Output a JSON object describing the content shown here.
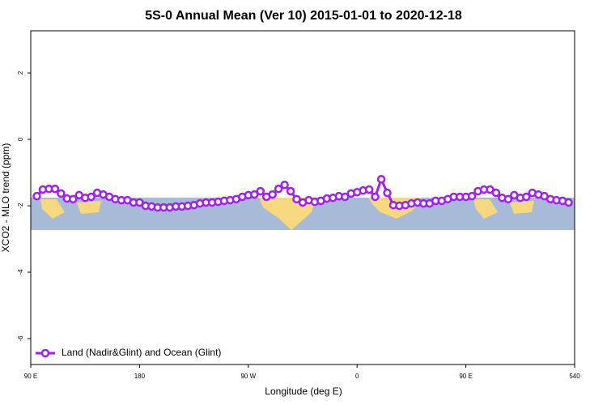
{
  "chart_data": {
    "type": "line",
    "title": "5S-0 Annual Mean (Ver 10)   2015-01-01 to 2020-12-18",
    "x_label": "Longitude (deg E)",
    "y_label": "XCO2 - MLO trend (ppm)",
    "x": [
      95,
      100,
      105,
      110,
      115,
      120,
      125,
      130,
      135,
      140,
      145,
      150,
      155,
      160,
      165,
      170,
      175,
      180,
      185,
      190,
      195,
      200,
      205,
      210,
      215,
      220,
      225,
      230,
      235,
      240,
      245,
      250,
      255,
      260,
      265,
      270,
      275,
      280,
      285,
      290,
      295,
      300,
      305,
      310,
      315,
      320,
      325,
      330,
      335,
      340,
      345,
      350,
      355,
      360,
      365,
      370,
      375,
      380,
      385,
      390,
      395,
      400,
      405,
      410,
      415,
      420,
      425,
      430,
      435,
      440,
      445,
      450,
      455,
      460,
      465,
      470,
      475,
      480,
      485,
      490,
      495,
      500,
      505,
      510,
      515,
      520,
      525,
      530,
      535
    ],
    "series": [
      {
        "name": "Land (Nadir&Glint) and Ocean (Glint)",
        "color": "#a020f0",
        "values": [
          -1.71,
          -1.51,
          -1.49,
          -1.49,
          -1.63,
          -1.78,
          -1.8,
          -1.68,
          -1.76,
          -1.73,
          -1.61,
          -1.66,
          -1.73,
          -1.8,
          -1.83,
          -1.83,
          -1.9,
          -1.9,
          -2.0,
          -2.02,
          -2.05,
          -2.05,
          -2.05,
          -2.02,
          -2.02,
          -2.0,
          -1.98,
          -1.93,
          -1.9,
          -1.9,
          -1.88,
          -1.85,
          -1.83,
          -1.8,
          -1.73,
          -1.68,
          -1.66,
          -1.56,
          -1.73,
          -1.66,
          -1.49,
          -1.37,
          -1.56,
          -1.8,
          -1.9,
          -1.83,
          -1.88,
          -1.85,
          -1.78,
          -1.76,
          -1.71,
          -1.73,
          -1.63,
          -1.59,
          -1.54,
          -1.51,
          -1.73,
          -1.2,
          -1.61,
          -1.98,
          -2.0,
          -1.98,
          -1.93,
          -1.9,
          -1.93,
          -1.93,
          -1.85,
          -1.85,
          -1.8,
          -1.73,
          -1.73,
          -1.73,
          -1.71,
          -1.56,
          -1.51,
          -1.51,
          -1.61,
          -1.76,
          -1.8,
          -1.68,
          -1.76,
          -1.73,
          -1.61,
          -1.66,
          -1.71,
          -1.8,
          -1.83,
          -1.85,
          -1.9
        ]
      }
    ],
    "xlim": [
      90,
      540
    ],
    "xticks": [
      {
        "value": 90,
        "label": "90 E"
      },
      180,
      {
        "value": 270,
        "label": "90 W"
      },
      {
        "value": 360,
        "label": "0"
      },
      {
        "value": 450,
        "label": "90 E"
      },
      540
    ],
    "ylim": [
      -6.78,
      3.27
    ],
    "yticks": [
      -6,
      -4,
      -2,
      0,
      2
    ],
    "legend": "bottom-left"
  }
}
